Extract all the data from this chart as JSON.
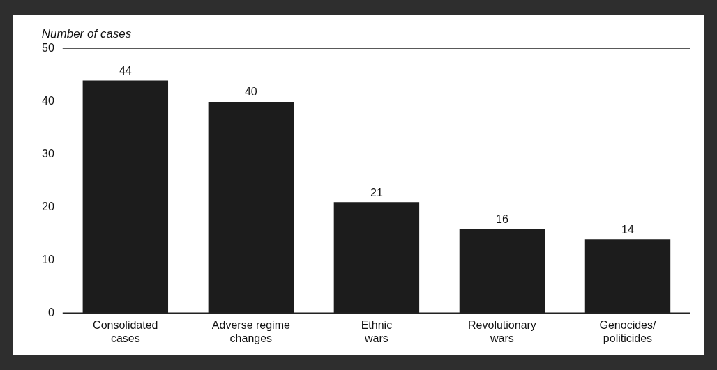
{
  "chart_data": {
    "type": "bar",
    "ylabel": "Number of cases",
    "categories": [
      "Consolidated cases",
      "Adverse regime changes",
      "Ethnic wars",
      "Revolutionary wars",
      "Genocides/politicides"
    ],
    "values": [
      44,
      40,
      21,
      16,
      14
    ],
    "color": "#1c1c1c",
    "ylim": [
      0,
      50
    ],
    "yticks": [
      0,
      10,
      20,
      30,
      40,
      50
    ],
    "grid": false,
    "data_labels": true,
    "legend": false
  }
}
